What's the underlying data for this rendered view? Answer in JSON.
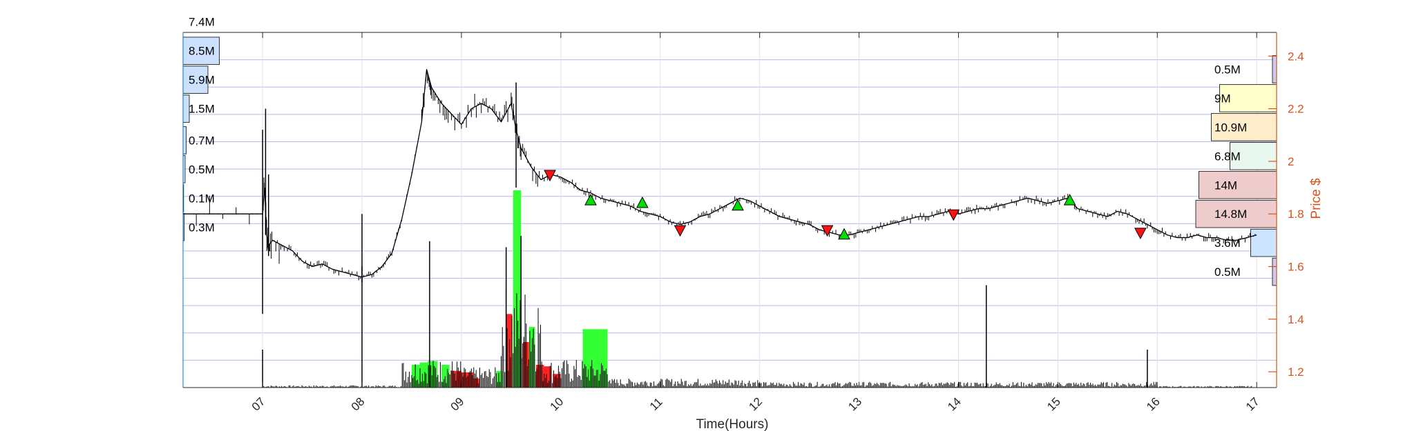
{
  "chart_data": {
    "type": "line",
    "title": "",
    "xlabel": "Time(Hours)",
    "ylabel": "Price $",
    "x_ticks": [
      "07",
      "08",
      "09",
      "10",
      "11",
      "12",
      "13",
      "14",
      "15",
      "16",
      "17"
    ],
    "y_ticks": [
      "1.2",
      "1.4",
      "1.6",
      "1.8",
      "2",
      "2.2",
      "2.4"
    ],
    "xlim": [
      6.2,
      17.2
    ],
    "ylim": [
      1.14,
      2.49
    ],
    "grid": true,
    "series": [
      {
        "type": "line",
        "x": [
          6.2,
          7.0,
          7.02,
          7.04,
          7.06,
          7.1,
          7.2,
          7.3,
          7.4,
          7.5,
          7.6,
          7.7,
          7.8,
          7.9,
          8.0,
          8.1,
          8.2,
          8.3,
          8.4,
          8.5,
          8.6,
          8.65,
          8.7,
          8.8,
          8.9,
          9.0,
          9.1,
          9.2,
          9.3,
          9.4,
          9.5,
          9.55,
          9.6,
          9.7,
          9.8,
          9.9,
          10.0,
          10.1,
          10.2,
          10.3,
          10.4,
          10.5,
          10.6,
          10.7,
          10.8,
          10.9,
          11.0,
          11.1,
          11.2,
          11.3,
          11.4,
          11.5,
          11.6,
          11.7,
          11.8,
          11.9,
          12.0,
          12.1,
          12.2,
          12.3,
          12.4,
          12.5,
          12.6,
          12.7,
          12.8,
          12.9,
          13.0,
          13.1,
          13.2,
          13.3,
          13.4,
          13.5,
          13.6,
          13.7,
          13.8,
          13.9,
          14.0,
          14.1,
          14.2,
          14.3,
          14.4,
          14.5,
          14.6,
          14.7,
          14.8,
          14.9,
          15.0,
          15.1,
          15.2,
          15.3,
          15.4,
          15.5,
          15.6,
          15.7,
          15.8,
          15.9,
          16.0,
          16.1,
          16.2,
          16.3,
          16.4,
          16.5,
          16.6,
          16.7,
          16.8,
          16.9,
          17.0
        ],
        "y": [
          1.8,
          1.8,
          1.9,
          1.72,
          1.68,
          1.7,
          1.68,
          1.66,
          1.62,
          1.6,
          1.61,
          1.59,
          1.58,
          1.57,
          1.56,
          1.57,
          1.6,
          1.65,
          1.78,
          1.95,
          2.15,
          2.35,
          2.28,
          2.22,
          2.18,
          2.14,
          2.2,
          2.22,
          2.2,
          2.15,
          2.22,
          2.12,
          2.05,
          1.98,
          1.93,
          1.95,
          1.94,
          1.92,
          1.89,
          1.88,
          1.86,
          1.85,
          1.84,
          1.83,
          1.81,
          1.8,
          1.79,
          1.77,
          1.76,
          1.77,
          1.79,
          1.8,
          1.82,
          1.84,
          1.86,
          1.85,
          1.83,
          1.81,
          1.79,
          1.78,
          1.77,
          1.76,
          1.74,
          1.73,
          1.72,
          1.72,
          1.73,
          1.74,
          1.75,
          1.76,
          1.77,
          1.78,
          1.79,
          1.79,
          1.8,
          1.81,
          1.8,
          1.81,
          1.82,
          1.82,
          1.83,
          1.84,
          1.85,
          1.86,
          1.85,
          1.84,
          1.85,
          1.86,
          1.82,
          1.81,
          1.8,
          1.79,
          1.81,
          1.8,
          1.78,
          1.76,
          1.74,
          1.72,
          1.71,
          1.71,
          1.72,
          1.71,
          1.71,
          1.7,
          1.7,
          1.71,
          1.72
        ]
      }
    ],
    "volume_bars": {
      "units": "fraction of max volume",
      "bars": [
        {
          "x": 8.5,
          "w": 0.08,
          "v": 0.3,
          "color": "#33ff33"
        },
        {
          "x": 8.58,
          "w": 0.08,
          "v": 0.33,
          "color": "#33ff33"
        },
        {
          "x": 8.66,
          "w": 0.1,
          "v": 0.35,
          "color": "#33ff33"
        },
        {
          "x": 8.8,
          "w": 0.08,
          "v": 0.3,
          "color": "#33ff33"
        },
        {
          "x": 8.9,
          "w": 0.1,
          "v": 0.22,
          "color": "#ff2222"
        },
        {
          "x": 9.0,
          "w": 0.12,
          "v": 0.2,
          "color": "#ff2222"
        },
        {
          "x": 9.12,
          "w": 0.06,
          "v": 0.12,
          "color": "#ff2222"
        },
        {
          "x": 9.35,
          "w": 0.06,
          "v": 0.22,
          "color": "#33ff33"
        },
        {
          "x": 9.45,
          "w": 0.06,
          "v": 0.97,
          "color": "#ff2222"
        },
        {
          "x": 9.52,
          "w": 0.08,
          "v": 2.6,
          "color": "#33ff33"
        },
        {
          "x": 9.62,
          "w": 0.06,
          "v": 0.6,
          "color": "#ff2222"
        },
        {
          "x": 9.68,
          "w": 0.06,
          "v": 0.8,
          "color": "#33ff33"
        },
        {
          "x": 9.75,
          "w": 0.08,
          "v": 0.3,
          "color": "#ff2222"
        },
        {
          "x": 9.82,
          "w": 0.08,
          "v": 0.28,
          "color": "#ff2222"
        },
        {
          "x": 9.92,
          "w": 0.08,
          "v": 0.18,
          "color": "#ff2222"
        },
        {
          "x": 10.22,
          "w": 0.25,
          "v": 0.77,
          "color": "#33ff33"
        }
      ]
    },
    "signals": [
      {
        "x": 9.89,
        "y": 1.95,
        "dir": "down"
      },
      {
        "x": 10.3,
        "y": 1.85,
        "dir": "up"
      },
      {
        "x": 10.82,
        "y": 1.84,
        "dir": "up"
      },
      {
        "x": 11.2,
        "y": 1.74,
        "dir": "down"
      },
      {
        "x": 11.78,
        "y": 1.83,
        "dir": "up"
      },
      {
        "x": 12.68,
        "y": 1.74,
        "dir": "down"
      },
      {
        "x": 12.85,
        "y": 1.72,
        "dir": "up"
      },
      {
        "x": 13.95,
        "y": 1.8,
        "dir": "down"
      },
      {
        "x": 15.12,
        "y": 1.85,
        "dir": "up"
      },
      {
        "x": 15.83,
        "y": 1.73,
        "dir": "down"
      }
    ],
    "left_profile": [
      {
        "label": "7.4M",
        "y": 2.53,
        "w": 0.0
      },
      {
        "label": "8.5M",
        "y": 2.42,
        "w": 0.35
      },
      {
        "label": "5.9M",
        "y": 2.31,
        "w": 0.24
      },
      {
        "label": "1.5M",
        "y": 2.2,
        "w": 0.06
      },
      {
        "label": "0.7M",
        "y": 2.08,
        "w": 0.03
      },
      {
        "label": "0.5M",
        "y": 1.97,
        "w": 0.02
      },
      {
        "label": "0.1M",
        "y": 1.86,
        "w": 0.005
      },
      {
        "label": "0.3M",
        "y": 1.75,
        "w": 0.01
      }
    ],
    "right_profile": [
      {
        "label": "0.5M",
        "y": 2.35,
        "w": 0.04,
        "color": "#ccccee"
      },
      {
        "label": "9M",
        "y": 2.24,
        "w": 0.55,
        "color": "#ffffcc"
      },
      {
        "label": "10.9M",
        "y": 2.13,
        "w": 0.63,
        "color": "#ffeecc"
      },
      {
        "label": "6.8M",
        "y": 2.02,
        "w": 0.45,
        "color": "#e8f8ee"
      },
      {
        "label": "14M",
        "y": 1.91,
        "w": 0.75,
        "color": "#eecccc"
      },
      {
        "label": "14.8M",
        "y": 1.8,
        "w": 0.78,
        "color": "#eecccc"
      },
      {
        "label": "3.6M",
        "y": 1.69,
        "w": 0.25,
        "color": "#cce4ff"
      },
      {
        "label": "0.5M",
        "y": 1.58,
        "w": 0.04,
        "color": "#ccccee"
      }
    ]
  }
}
